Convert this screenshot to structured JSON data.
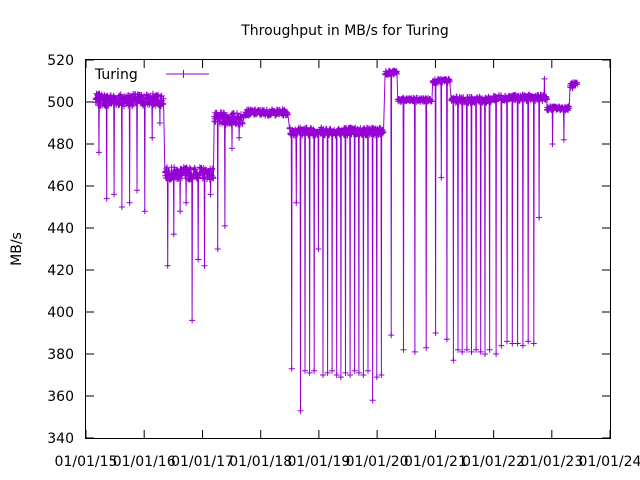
{
  "chart_data": {
    "type": "line",
    "title": "Throughput in MB/s for Turing",
    "xlabel": "",
    "ylabel": "MB/s",
    "ylim": [
      340,
      520
    ],
    "yticks": [
      340,
      360,
      380,
      400,
      420,
      440,
      460,
      480,
      500,
      520
    ],
    "xlim": [
      "2015-01-01",
      "2024-01-01"
    ],
    "xticks": [
      "01/01/15",
      "01/01/16",
      "01/01/17",
      "01/01/18",
      "01/01/19",
      "01/01/20",
      "01/01/21",
      "01/01/22",
      "01/01/23",
      "01/01/24"
    ],
    "grid": false,
    "legend_position": "top-left",
    "line_color": "#9400d3",
    "series": [
      {
        "name": "Turing",
        "segments": [
          {
            "start": "2015-03-01",
            "end": "2016-05-01",
            "base": 501,
            "noise": 3,
            "drops": [
              476,
              454,
              456,
              450,
              452,
              458,
              448,
              483,
              490
            ]
          },
          {
            "start": "2016-05-10",
            "end": "2017-03-10",
            "base": 466,
            "noise": 3,
            "drops": [
              422,
              437,
              448,
              452,
              396,
              425,
              422,
              456
            ]
          },
          {
            "start": "2017-03-15",
            "end": "2017-09-10",
            "base": 492,
            "noise": 3,
            "drops": [
              430,
              441,
              478,
              483
            ]
          },
          {
            "start": "2017-09-20",
            "end": "2018-06-20",
            "base": 495,
            "noise": 1.5,
            "drops": []
          },
          {
            "start": "2018-07-01",
            "end": "2020-02-10",
            "base": 486,
            "noise": 2,
            "drops": [
              373,
              452,
              353,
              372,
              371,
              372,
              430,
              370,
              371,
              372,
              370,
              369,
              371,
              370,
              372,
              371,
              370,
              372,
              358,
              369,
              370
            ]
          },
          {
            "start": "2020-02-20",
            "end": "2020-05-05",
            "base": 514,
            "noise": 1,
            "drops": [
              389
            ]
          },
          {
            "start": "2020-05-10",
            "end": "2020-12-10",
            "base": 501,
            "noise": 1,
            "drops": [
              382,
              381,
              383
            ]
          },
          {
            "start": "2020-12-15",
            "end": "2021-04-01",
            "base": 510,
            "noise": 1,
            "drops": [
              390,
              464,
              387
            ]
          },
          {
            "start": "2021-04-10",
            "end": "2021-12-20",
            "base": 501,
            "noise": 1.5,
            "drops": [
              377,
              382,
              381,
              382,
              381,
              382,
              381,
              380,
              382
            ]
          },
          {
            "start": "2022-01-01",
            "end": "2022-12-01",
            "base": 502,
            "noise": 1.5,
            "drops": [
              380,
              384,
              386,
              385,
              385,
              384,
              386,
              385,
              445,
              511
            ]
          },
          {
            "start": "2022-12-01",
            "end": "2023-04-20",
            "base": 497,
            "noise": 1,
            "drops": [
              480,
              482
            ]
          },
          {
            "start": "2023-04-25",
            "end": "2023-06-10",
            "base": 508,
            "noise": 1.5,
            "drops": []
          }
        ]
      }
    ]
  }
}
